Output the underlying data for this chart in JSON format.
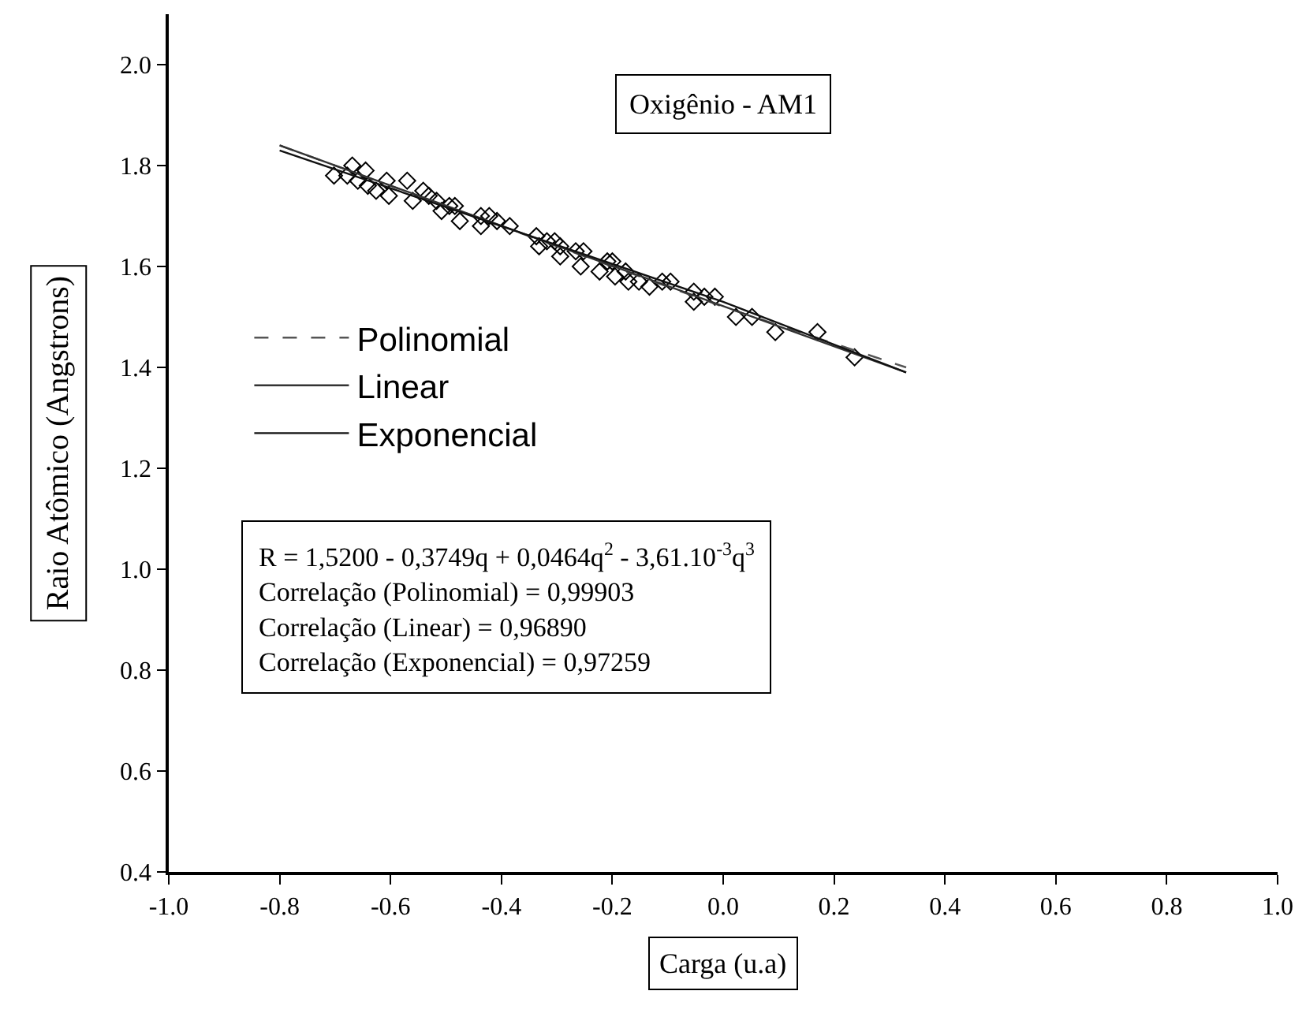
{
  "chart_data": {
    "type": "scatter",
    "title": "Oxigênio - AM1",
    "xlabel": "Carga (u.a)",
    "ylabel": "Raio Atômico (Angstrons)",
    "annotations": [
      "R = 1,5200 - 0,3749q + 0,0464q$^{2}$ - 3,61.10$^{-3}$q$^{3}$",
      "Correlação (Polinomial) = 0,99903",
      "Correlação (Linear) = 0,96890",
      "Correlação (Exponencial) = 0,97259"
    ],
    "xlim": [
      -1.0,
      1.0
    ],
    "ylim": [
      0.4,
      2.1
    ],
    "xticks": [
      {
        "value": -1.0,
        "label": "-1.0"
      },
      {
        "value": -0.8,
        "label": "-0.8"
      },
      {
        "value": -0.6,
        "label": "-0.6"
      },
      {
        "value": -0.4,
        "label": "-0.4"
      },
      {
        "value": -0.2,
        "label": "-0.2"
      },
      {
        "value": 0.0,
        "label": "0.0"
      },
      {
        "value": 0.2,
        "label": "0.2"
      },
      {
        "value": 0.4,
        "label": "0.4"
      },
      {
        "value": 0.6,
        "label": "0.6"
      },
      {
        "value": 0.8,
        "label": "0.8"
      },
      {
        "value": 1.0,
        "label": "1.0"
      }
    ],
    "yticks": [
      0.4,
      0.6,
      0.8,
      {
        "value": 1.0,
        "label": "1.0"
      },
      1.2,
      1.4,
      1.6,
      1.8,
      {
        "value": 2.0,
        "label": "2.0"
      }
    ],
    "legend": "left",
    "series": [
      {
        "marker": "diamond",
        "color": "#000000",
        "x": [
          -0.702,
          -0.678,
          -0.669,
          -0.659,
          -0.645,
          -0.641,
          -0.626,
          -0.607,
          -0.603,
          -0.57,
          -0.56,
          -0.541,
          -0.531,
          -0.517,
          -0.508,
          -0.494,
          -0.484,
          -0.475,
          -0.437,
          -0.437,
          -0.422,
          -0.408,
          -0.385,
          -0.337,
          -0.332,
          -0.318,
          -0.304,
          -0.294,
          -0.294,
          -0.266,
          -0.257,
          -0.252,
          -0.223,
          -0.209,
          -0.2,
          -0.195,
          -0.176,
          -0.171,
          -0.152,
          -0.133,
          -0.11,
          -0.095,
          -0.053,
          -0.053,
          -0.034,
          -0.015,
          0.023,
          0.052,
          0.094,
          0.17,
          0.237
        ],
        "values": [
          1.78,
          1.78,
          1.8,
          1.77,
          1.79,
          1.76,
          1.75,
          1.77,
          1.74,
          1.77,
          1.73,
          1.75,
          1.74,
          1.73,
          1.71,
          1.72,
          1.72,
          1.69,
          1.7,
          1.68,
          1.7,
          1.69,
          1.68,
          1.66,
          1.64,
          1.65,
          1.65,
          1.64,
          1.62,
          1.63,
          1.6,
          1.63,
          1.59,
          1.61,
          1.61,
          1.58,
          1.59,
          1.57,
          1.57,
          1.56,
          1.57,
          1.57,
          1.55,
          1.53,
          1.54,
          1.54,
          1.5,
          1.5,
          1.47,
          1.47,
          1.42
        ]
      },
      {
        "type": "line",
        "name": "Polinomial",
        "color": "#555555",
        "line_style": "dashed",
        "marker": "none",
        "x": [
          -0.8,
          -0.4,
          0.0,
          0.33
        ],
        "values": [
          1.84,
          1.68,
          1.52,
          1.4
        ]
      },
      {
        "type": "line",
        "name": "Linear",
        "color": "#333333",
        "line_style": "solid",
        "marker": "none",
        "x": [
          -0.8,
          0.33
        ],
        "values": [
          1.84,
          1.39
        ]
      },
      {
        "type": "line",
        "name": "Exponencial",
        "color": "#111111",
        "line_style": "solid",
        "marker": "none",
        "x": [
          -0.8,
          -0.4,
          0.0,
          0.33
        ],
        "values": [
          1.83,
          1.68,
          1.53,
          1.39
        ]
      }
    ]
  }
}
